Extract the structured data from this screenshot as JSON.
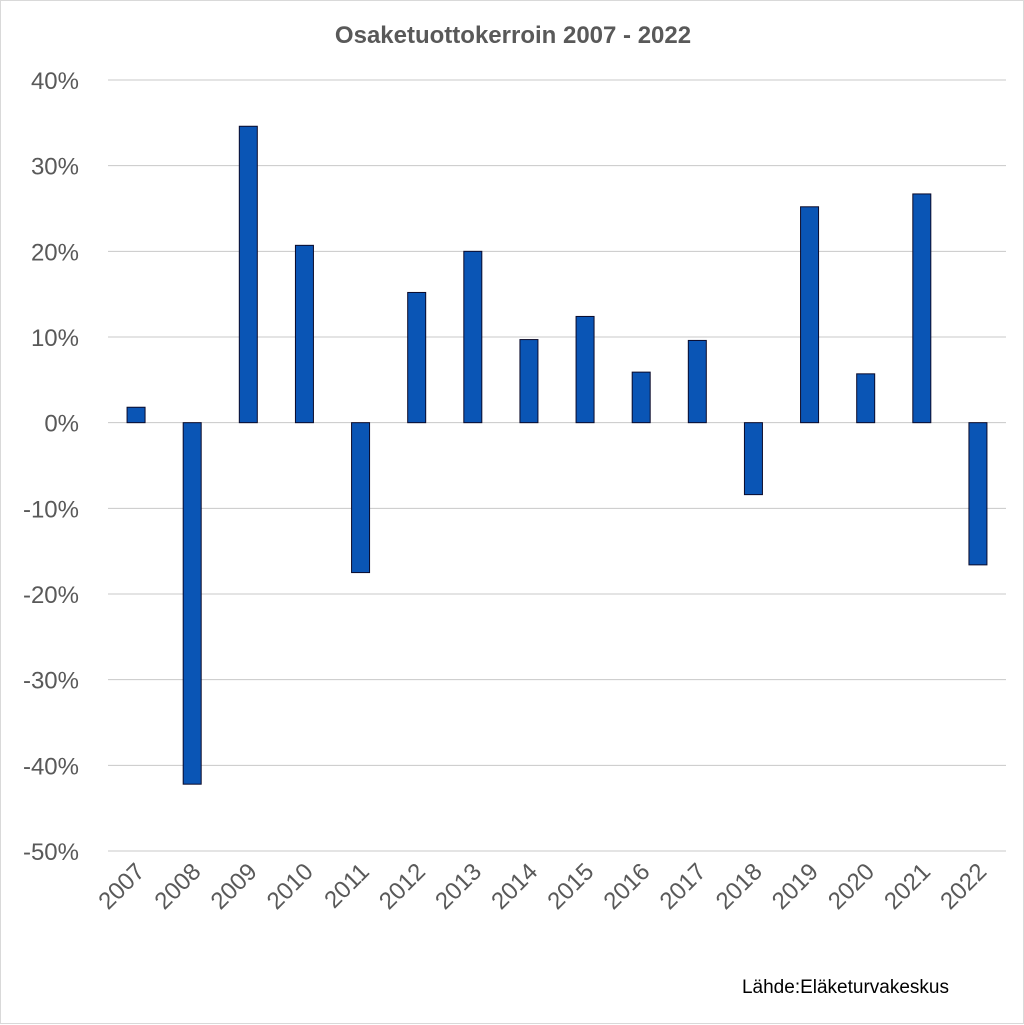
{
  "chart_data": {
    "type": "bar",
    "title": "Osaketuottokerroin 2007 - 2022",
    "xlabel": "",
    "ylabel": "",
    "categories": [
      "2007",
      "2008",
      "2009",
      "2010",
      "2011",
      "2012",
      "2013",
      "2014",
      "2015",
      "2016",
      "2017",
      "2018",
      "2019",
      "2020",
      "2021",
      "2022"
    ],
    "values": [
      1.8,
      -42.2,
      34.6,
      20.7,
      -17.5,
      15.2,
      20.0,
      9.7,
      12.4,
      5.9,
      9.6,
      -8.4,
      25.2,
      5.7,
      26.7,
      -16.6
    ],
    "ylim": [
      -50,
      40
    ],
    "yticks": [
      40,
      30,
      20,
      10,
      0,
      -10,
      -20,
      -30,
      -40,
      -50
    ],
    "ytick_labels": [
      "40%",
      "30%",
      "20%",
      "10%",
      "0%",
      "-10%",
      "-20%",
      "-30%",
      "-40%",
      "-50%"
    ],
    "grid": true,
    "legend": "none",
    "bar_color": "#0a55b5",
    "source": "Lähde:Eläketurvakeskus"
  }
}
